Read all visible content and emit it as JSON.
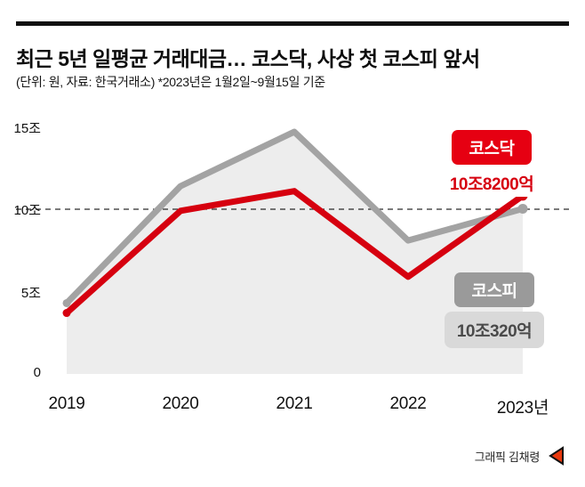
{
  "header": {
    "title": "최근 5년 일평균 거래대금… 코스닥, 사상 첫 코스피 앞서",
    "subtitle": "(단위: 원, 자료: 한국거래소)  *2023년은 1월2일~9월15일 기준"
  },
  "chart_data": {
    "type": "line",
    "title": "최근 5년 일평균 거래대금",
    "unit": "조 원",
    "x": [
      "2019",
      "2020",
      "2021",
      "2022",
      "2023년"
    ],
    "series": [
      {
        "key": "kospi",
        "name": "코스피",
        "color": "#a3a3a3",
        "values": [
          4.3,
          11.4,
          14.7,
          8.1,
          10.03
        ],
        "final_label": "10조320억"
      },
      {
        "key": "kosdaq",
        "name": "코스닥",
        "color": "#d6000f",
        "values": [
          3.7,
          9.9,
          11.1,
          5.9,
          10.82
        ],
        "final_label": "10조8200억"
      }
    ],
    "yticks": [
      {
        "v": 0,
        "label": "0"
      },
      {
        "v": 5,
        "label": "5조"
      },
      {
        "v": 10,
        "label": "10조"
      },
      {
        "v": 15,
        "label": "15조"
      }
    ],
    "ylim": [
      0,
      15.8
    ],
    "grid_dashed_at": 10,
    "area_fill_under": "kospi",
    "legend_position": "callouts-right"
  },
  "footer": {
    "credit": "그래픽 김채령"
  }
}
